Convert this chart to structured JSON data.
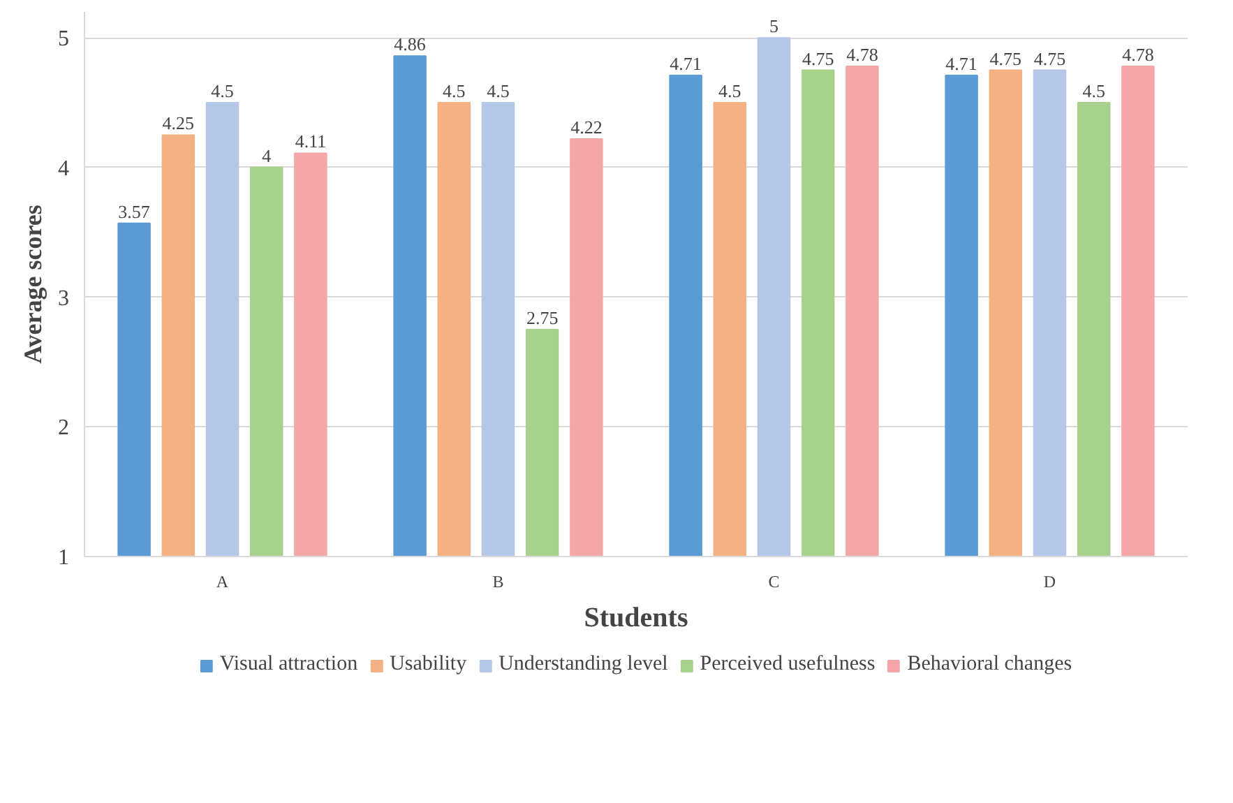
{
  "chart_data": {
    "type": "bar",
    "xlabel": "Students",
    "ylabel": "Average scores",
    "categories": [
      "A",
      "B",
      "C",
      "D"
    ],
    "series": [
      {
        "name": "Visual attraction",
        "color": "#5b9bd5",
        "values": [
          3.57,
          4.86,
          4.71,
          4.71
        ]
      },
      {
        "name": "Usability",
        "color": "#f4b183",
        "values": [
          4.25,
          4.5,
          4.5,
          4.75
        ]
      },
      {
        "name": "Understanding level",
        "color": "#b4c7e7",
        "values": [
          4.5,
          4.5,
          5,
          4.75
        ]
      },
      {
        "name": "Perceived usefulness",
        "color": "#a9d18e",
        "values": [
          4,
          2.75,
          4.75,
          4.5
        ]
      },
      {
        "name": "Behavioral changes",
        "color": "#f4a6a8",
        "values": [
          4.11,
          4.22,
          4.78,
          4.78
        ]
      }
    ],
    "ylim": [
      1,
      5.2
    ],
    "yticks": [
      1,
      2,
      3,
      4,
      5
    ],
    "grid": "y",
    "legend": "bottom",
    "data_labels": true
  }
}
